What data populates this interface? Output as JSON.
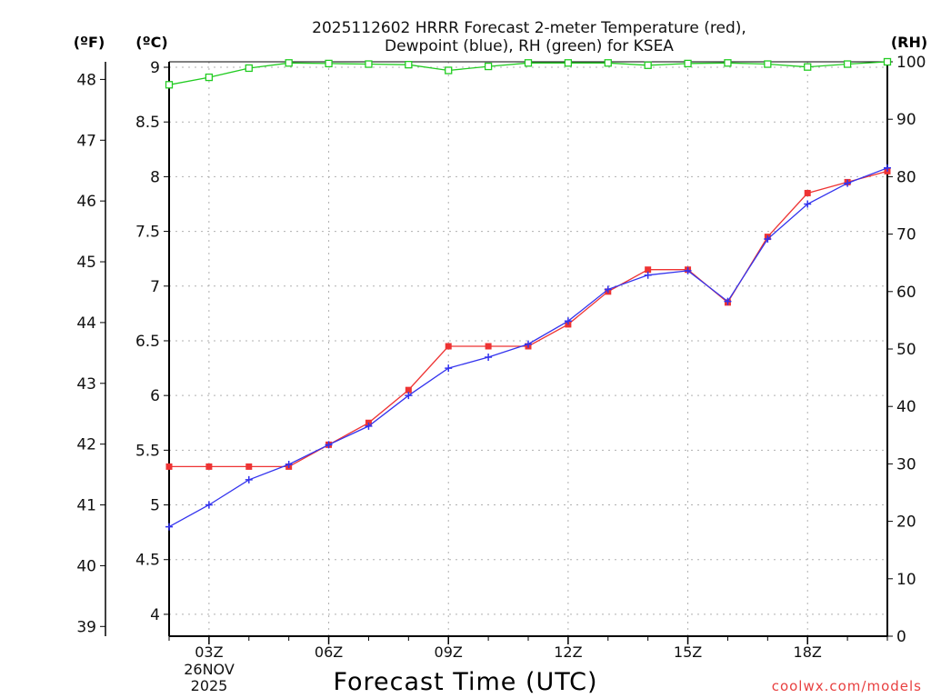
{
  "chart_data": {
    "type": "line",
    "title_line1": "2025112602 HRRR Forecast 2-meter Temperature (red),",
    "title_line2": "Dewpoint (blue), RH (green) for KSEA",
    "xlabel": "Forecast Time (UTC)",
    "unit_f": "(ºF)",
    "unit_c": "(ºC)",
    "unit_rh": "(RH)",
    "credit": "coolwx.com/models",
    "x_hours": [
      2,
      3,
      4,
      5,
      6,
      7,
      8,
      9,
      10,
      11,
      12,
      13,
      14,
      15,
      16,
      17,
      18,
      19,
      20
    ],
    "xlim": [
      2,
      20
    ],
    "x_ticks": [
      {
        "hour": 3,
        "label": "03Z"
      },
      {
        "hour": 6,
        "label": "06Z"
      },
      {
        "hour": 9,
        "label": "09Z"
      },
      {
        "hour": 12,
        "label": "12Z"
      },
      {
        "hour": 15,
        "label": "15Z"
      },
      {
        "hour": 18,
        "label": "18Z"
      }
    ],
    "date_label_1": "26NOV",
    "date_label_2": "2025",
    "ylim_c": [
      3.8,
      9.05
    ],
    "yticks_c": [
      "4",
      "4.5",
      "5",
      "5.5",
      "6",
      "6.5",
      "7",
      "7.5",
      "8",
      "8.5",
      "9"
    ],
    "yticks_f": [
      "39",
      "40",
      "41",
      "42",
      "43",
      "44",
      "45",
      "46",
      "47",
      "48"
    ],
    "ylim_rh": [
      0,
      100
    ],
    "yticks_rh": [
      "0",
      "10",
      "20",
      "30",
      "40",
      "50",
      "60",
      "70",
      "80",
      "90",
      "100"
    ],
    "series": [
      {
        "name": "Temperature",
        "color": "#ee3333",
        "values": [
          5.35,
          5.35,
          5.35,
          5.35,
          5.55,
          5.75,
          6.05,
          6.45,
          6.45,
          6.45,
          6.65,
          6.95,
          7.15,
          7.15,
          6.85,
          7.45,
          7.85,
          7.95,
          8.05
        ]
      },
      {
        "name": "Dewpoint",
        "color": "#3333ee",
        "values": [
          4.8,
          5.0,
          5.23,
          5.37,
          5.55,
          5.72,
          6.0,
          6.25,
          6.35,
          6.47,
          6.68,
          6.97,
          7.1,
          7.14,
          6.86,
          7.43,
          7.75,
          7.94,
          8.08
        ]
      },
      {
        "name": "RH",
        "color": "#22cc22",
        "values": [
          96,
          97.3,
          98.9,
          99.8,
          99.7,
          99.6,
          99.5,
          98.5,
          99.2,
          99.8,
          99.8,
          99.8,
          99.4,
          99.7,
          99.8,
          99.6,
          99.1,
          99.6,
          100
        ]
      }
    ]
  }
}
